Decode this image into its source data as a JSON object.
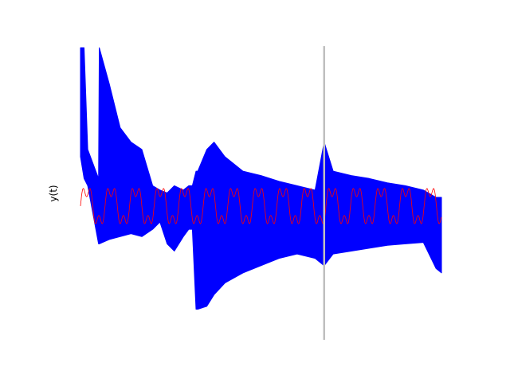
{
  "chart_data": {
    "type": "line",
    "title": "",
    "xlabel": "",
    "ylabel": "y(t)",
    "axes_visible": false,
    "grid": false,
    "xlim": [
      0,
      1
    ],
    "ylim": [
      -1,
      1
    ],
    "marker_x": 0.675,
    "colors": {
      "signal": "#0000ff",
      "reference": "#ff0000",
      "marker": "#bfbfbf"
    },
    "series": [
      {
        "color_key": "signal",
        "style": "dense oscillation envelope",
        "envelope": [
          {
            "x": 0.0,
            "upper": 1.0,
            "lower": 0.25
          },
          {
            "x": 0.01,
            "upper": 1.0,
            "lower": 0.1
          },
          {
            "x": 0.02,
            "upper": 0.3,
            "lower": 0.05
          },
          {
            "x": 0.05,
            "upper": 0.1,
            "lower": -0.35
          },
          {
            "x": 0.052,
            "upper": 1.0,
            "lower": -0.35
          },
          {
            "x": 0.08,
            "upper": 0.75,
            "lower": -0.32
          },
          {
            "x": 0.11,
            "upper": 0.45,
            "lower": -0.3
          },
          {
            "x": 0.14,
            "upper": 0.35,
            "lower": -0.28
          },
          {
            "x": 0.17,
            "upper": 0.3,
            "lower": -0.3
          },
          {
            "x": 0.2,
            "upper": 0.05,
            "lower": -0.25
          },
          {
            "x": 0.22,
            "upper": 0.02,
            "lower": -0.2
          },
          {
            "x": 0.24,
            "upper": 0.0,
            "lower": -0.35
          },
          {
            "x": 0.26,
            "upper": 0.05,
            "lower": -0.4
          },
          {
            "x": 0.285,
            "upper": 0.02,
            "lower": -0.3
          },
          {
            "x": 0.3,
            "upper": 0.05,
            "lower": -0.25
          },
          {
            "x": 0.31,
            "upper": 0.05,
            "lower": -0.25
          },
          {
            "x": 0.32,
            "upper": 0.15,
            "lower": -0.8
          },
          {
            "x": 0.325,
            "upper": 0.15,
            "lower": -0.8
          },
          {
            "x": 0.35,
            "upper": 0.3,
            "lower": -0.78
          },
          {
            "x": 0.37,
            "upper": 0.35,
            "lower": -0.7
          },
          {
            "x": 0.4,
            "upper": 0.25,
            "lower": -0.62
          },
          {
            "x": 0.45,
            "upper": 0.15,
            "lower": -0.55
          },
          {
            "x": 0.5,
            "upper": 0.12,
            "lower": -0.5
          },
          {
            "x": 0.55,
            "upper": 0.08,
            "lower": -0.45
          },
          {
            "x": 0.6,
            "upper": 0.05,
            "lower": -0.42
          },
          {
            "x": 0.65,
            "upper": 0.02,
            "lower": -0.45
          },
          {
            "x": 0.675,
            "upper": 0.35,
            "lower": -0.5
          },
          {
            "x": 0.7,
            "upper": 0.15,
            "lower": -0.42
          },
          {
            "x": 0.75,
            "upper": 0.12,
            "lower": -0.4
          },
          {
            "x": 0.8,
            "upper": 0.1,
            "lower": -0.38
          },
          {
            "x": 0.85,
            "upper": 0.07,
            "lower": -0.36
          },
          {
            "x": 0.9,
            "upper": 0.05,
            "lower": -0.35
          },
          {
            "x": 0.95,
            "upper": 0.02,
            "lower": -0.34
          },
          {
            "x": 0.985,
            "upper": -0.03,
            "lower": -0.52
          },
          {
            "x": 1.0,
            "upper": -0.03,
            "lower": -0.55
          }
        ]
      },
      {
        "color_key": "reference",
        "style": "thin periodic line",
        "offset": -0.09,
        "amplitude": 0.17,
        "period": 0.068,
        "harmonic_ratio": 0.45
      }
    ]
  }
}
